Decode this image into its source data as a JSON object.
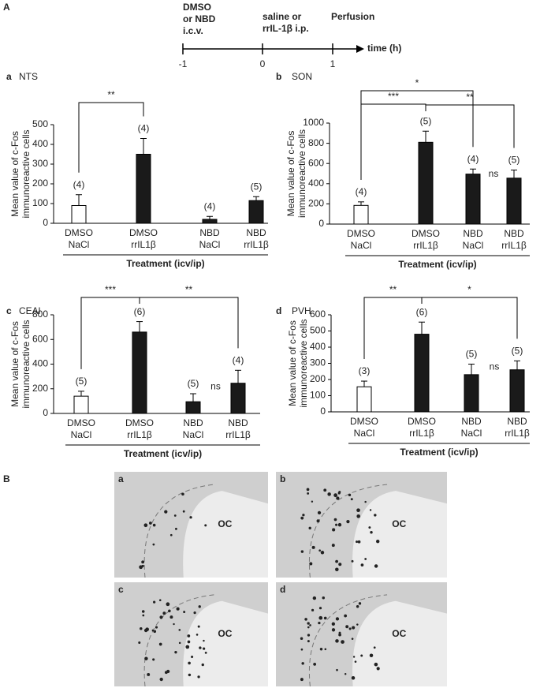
{
  "figure_label": "A",
  "timeline": {
    "events": [
      {
        "lines": [
          "DMSO",
          "or NBD",
          "i.c.v."
        ]
      },
      {
        "lines": [
          "saline or",
          "rrIL-1β i.p."
        ]
      },
      {
        "lines": [
          "Perfusion"
        ]
      }
    ],
    "ticks": [
      "-1",
      "0",
      "1"
    ],
    "axis_label": "time (h)"
  },
  "chart_data": [
    {
      "type": "bar",
      "panel": "a",
      "title": "NTS",
      "y_label": [
        "Mean value of c-Fos",
        "immunoreactive cells"
      ],
      "x_label": "Treatment (icv/ip)",
      "categories": [
        [
          "DMSO",
          "NaCl"
        ],
        [
          "DMSO",
          "rrIL1β"
        ],
        [
          "NBD",
          "NaCl"
        ],
        [
          "NBD",
          "rrIL1β"
        ]
      ],
      "values": [
        90,
        350,
        20,
        115
      ],
      "errors": [
        55,
        80,
        15,
        20
      ],
      "colors": [
        "#ffffff",
        "#1a1a1a",
        "#1a1a1a",
        "#1a1a1a"
      ],
      "n_labels": [
        "(4)",
        "(4)",
        "(4)",
        "(5)"
      ],
      "ylim": [
        0,
        500
      ],
      "yticks": [
        0,
        100,
        200,
        300,
        400,
        500
      ],
      "brackets": [
        {
          "from": 0,
          "to": 1,
          "label": "**"
        }
      ]
    },
    {
      "type": "bar",
      "panel": "b",
      "title": "SON",
      "y_label": [
        "Mean value of c-Fos",
        "immunoreactive cells"
      ],
      "x_label": "Treatment (icv/ip)",
      "categories": [
        [
          "DMSO",
          "NaCl"
        ],
        [
          "DMSO",
          "rrIL1β"
        ],
        [
          "NBD",
          "NaCl"
        ],
        [
          "NBD",
          "rrIL1β"
        ]
      ],
      "values": [
        185,
        810,
        495,
        455
      ],
      "errors": [
        35,
        110,
        50,
        80
      ],
      "colors": [
        "#ffffff",
        "#1a1a1a",
        "#1a1a1a",
        "#1a1a1a"
      ],
      "n_labels": [
        "(4)",
        "(5)",
        "(4)",
        "(5)"
      ],
      "ylim": [
        0,
        1000
      ],
      "yticks": [
        0,
        200,
        400,
        600,
        800,
        1000
      ],
      "brackets": [
        {
          "from": 0,
          "to": 2,
          "label": "*"
        },
        {
          "from": 0,
          "to": 1,
          "label": "***"
        },
        {
          "from": 1,
          "to": 3,
          "label": "**"
        }
      ],
      "ns_label": "ns"
    },
    {
      "type": "bar",
      "panel": "c",
      "title": "CEAl",
      "y_label": [
        "Mean value of c-Fos",
        "immunoreactive cells"
      ],
      "x_label": "Treatment (icv/ip)",
      "categories": [
        [
          "DMSO",
          "NaCl"
        ],
        [
          "DMSO",
          "rrIL1β"
        ],
        [
          "NBD",
          "NaCl"
        ],
        [
          "NBD",
          "rrIL1β"
        ]
      ],
      "values": [
        140,
        660,
        95,
        245
      ],
      "errors": [
        40,
        85,
        65,
        105
      ],
      "colors": [
        "#ffffff",
        "#1a1a1a",
        "#1a1a1a",
        "#1a1a1a"
      ],
      "n_labels": [
        "(5)",
        "(6)",
        "(5)",
        "(4)"
      ],
      "ylim": [
        0,
        800
      ],
      "yticks": [
        0,
        200,
        400,
        600,
        800
      ],
      "brackets": [
        {
          "from": 0,
          "to": 1,
          "label": "***"
        },
        {
          "from": 1,
          "to": 3,
          "label": "**"
        }
      ],
      "ns_label": "ns"
    },
    {
      "type": "bar",
      "panel": "d",
      "title": "PVH",
      "y_label": [
        "Mean value of c-Fos",
        "immunoreactive cells"
      ],
      "x_label": "Treatment (icv/ip)",
      "categories": [
        [
          "DMSO",
          "NaCl"
        ],
        [
          "DMSO",
          "rrIL1β"
        ],
        [
          "NBD",
          "NaCl"
        ],
        [
          "NBD",
          "rrIL1β"
        ]
      ],
      "values": [
        155,
        480,
        230,
        260
      ],
      "errors": [
        35,
        75,
        65,
        55
      ],
      "colors": [
        "#ffffff",
        "#1a1a1a",
        "#1a1a1a",
        "#1a1a1a"
      ],
      "n_labels": [
        "(3)",
        "(6)",
        "(5)",
        "(5)"
      ],
      "ylim": [
        0,
        600
      ],
      "yticks": [
        0,
        100,
        200,
        300,
        400,
        500,
        600
      ],
      "brackets": [
        {
          "from": 0,
          "to": 1,
          "label": "**"
        },
        {
          "from": 1,
          "to": 3,
          "label": "*"
        }
      ],
      "ns_label": "ns"
    }
  ],
  "micrographs": {
    "label": "B",
    "panels": [
      {
        "label": "a",
        "region": "OC"
      },
      {
        "label": "b",
        "region": "OC"
      },
      {
        "label": "c",
        "region": "OC"
      },
      {
        "label": "d",
        "region": "OC"
      }
    ]
  }
}
